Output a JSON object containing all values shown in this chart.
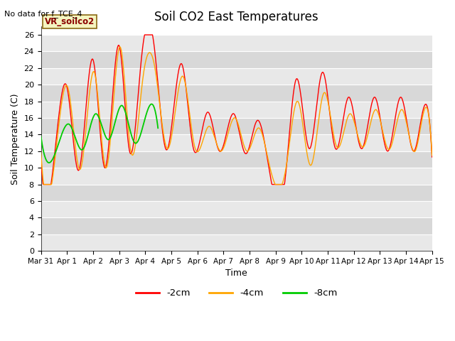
{
  "title": "Soil CO2 East Temperatures",
  "no_data_label": "No data for f_TCE_4",
  "sensor_label": "VR_soilco2",
  "xlabel": "Time",
  "ylabel": "Soil Temperature (C)",
  "ylim": [
    0,
    27
  ],
  "yticks": [
    0,
    2,
    4,
    6,
    8,
    10,
    12,
    14,
    16,
    18,
    20,
    22,
    24,
    26
  ],
  "xtick_labels": [
    "Mar 31",
    "Apr 1",
    "Apr 2",
    "Apr 3",
    "Apr 4",
    "Apr 5",
    "Apr 6",
    "Apr 7",
    "Apr 8",
    "Apr 9",
    "Apr 10",
    "Apr 11",
    "Apr 12",
    "Apr 13",
    "Apr 14",
    "Apr 15"
  ],
  "line_2cm_color": "#ff0000",
  "line_4cm_color": "#ffa500",
  "line_8cm_color": "#00cc00",
  "legend_entries": [
    "-2cm",
    "-4cm",
    "-8cm"
  ],
  "band_colors": [
    "#e8e8e8",
    "#d8d8d8"
  ],
  "band_edges": [
    0,
    2,
    4,
    6,
    8,
    10,
    12,
    14,
    16,
    18,
    20,
    22,
    24,
    26,
    27
  ]
}
